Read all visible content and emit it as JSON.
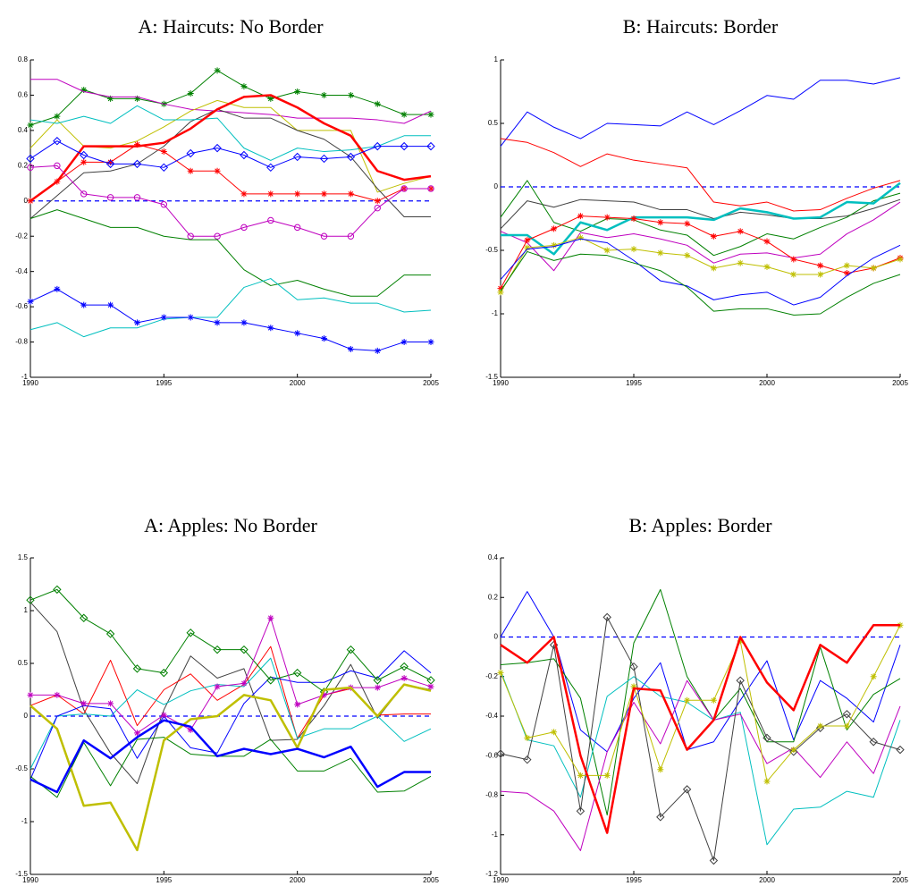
{
  "chart_data": [
    {
      "type": "line",
      "title": "A: Haircuts: No Border",
      "x": [
        1990,
        1991,
        1992,
        1993,
        1994,
        1995,
        1996,
        1997,
        1998,
        1999,
        2000,
        2001,
        2002,
        2003,
        2004,
        2005
      ],
      "xlim": [
        1990,
        2005
      ],
      "xticks": [
        1990,
        1995,
        2000,
        2005
      ],
      "ylim": [
        -1,
        0.8
      ],
      "yticks": [
        -1,
        -0.8,
        -0.6,
        -0.4,
        -0.2,
        0,
        0.2,
        0.4,
        0.6,
        0.8
      ],
      "hlines": [
        {
          "value": 0,
          "color": "#0000ff",
          "style": "dashed"
        }
      ],
      "series": [
        {
          "color": "#008000",
          "marker": "star",
          "line_width": 1,
          "values": [
            0.43,
            0.48,
            0.63,
            0.58,
            0.58,
            0.55,
            0.61,
            0.74,
            0.65,
            0.58,
            0.62,
            0.6,
            0.6,
            0.55,
            0.49,
            0.49
          ]
        },
        {
          "color": "#bf00bf",
          "marker": "none",
          "line_width": 1,
          "values": [
            0.69,
            0.69,
            0.62,
            0.59,
            0.59,
            0.55,
            0.52,
            0.51,
            0.5,
            0.49,
            0.47,
            0.47,
            0.47,
            0.46,
            0.44,
            0.51
          ]
        },
        {
          "color": "#bfbf00",
          "marker": "none",
          "line_width": 1,
          "values": [
            0.3,
            0.46,
            0.31,
            0.3,
            0.34,
            0.42,
            0.51,
            0.57,
            0.53,
            0.53,
            0.4,
            0.4,
            0.4,
            0.05,
            0.1,
            0.14
          ]
        },
        {
          "color": "#404040",
          "marker": "none",
          "line_width": 1,
          "values": [
            -0.1,
            0.03,
            0.16,
            0.17,
            0.21,
            0.31,
            0.45,
            0.52,
            0.47,
            0.47,
            0.4,
            0.35,
            0.25,
            0.07,
            -0.09,
            -0.09
          ]
        },
        {
          "color": "#00bfbf",
          "marker": "none",
          "line_width": 1,
          "values": [
            0.46,
            0.44,
            0.48,
            0.44,
            0.54,
            0.46,
            0.46,
            0.47,
            0.3,
            0.23,
            0.3,
            0.28,
            0.29,
            0.31,
            0.37,
            0.37
          ]
        },
        {
          "color": "#ff0000",
          "marker": "none",
          "line_width": 2.5,
          "values": [
            0.0,
            0.11,
            0.31,
            0.31,
            0.31,
            0.33,
            0.41,
            0.52,
            0.59,
            0.6,
            0.53,
            0.44,
            0.37,
            0.17,
            0.12,
            0.14
          ]
        },
        {
          "color": "#ff0000",
          "marker": "star",
          "line_width": 1,
          "values": [
            0.0,
            0.11,
            0.22,
            0.22,
            0.32,
            0.28,
            0.17,
            0.17,
            0.04,
            0.04,
            0.04,
            0.04,
            0.04,
            0.0,
            0.07,
            0.07
          ]
        },
        {
          "color": "#0000ff",
          "marker": "diamond",
          "line_width": 1,
          "values": [
            0.24,
            0.34,
            0.26,
            0.21,
            0.21,
            0.19,
            0.27,
            0.3,
            0.26,
            0.19,
            0.25,
            0.24,
            0.25,
            0.31,
            0.31,
            0.31
          ]
        },
        {
          "color": "#bf00bf",
          "marker": "circle",
          "line_width": 1,
          "values": [
            0.19,
            0.2,
            0.04,
            0.02,
            0.02,
            -0.02,
            -0.2,
            -0.2,
            -0.15,
            -0.11,
            -0.15,
            -0.2,
            -0.2,
            -0.04,
            0.07,
            0.07
          ]
        },
        {
          "color": "#008000",
          "marker": "none",
          "line_width": 1,
          "values": [
            -0.1,
            -0.05,
            -0.1,
            -0.15,
            -0.15,
            -0.2,
            -0.22,
            -0.22,
            -0.39,
            -0.48,
            -0.45,
            -0.5,
            -0.54,
            -0.54,
            -0.42,
            -0.42
          ]
        },
        {
          "color": "#00bfbf",
          "marker": "none",
          "line_width": 1,
          "values": [
            -0.73,
            -0.69,
            -0.77,
            -0.72,
            -0.72,
            -0.67,
            -0.66,
            -0.66,
            -0.49,
            -0.44,
            -0.56,
            -0.55,
            -0.58,
            -0.58,
            -0.63,
            -0.62
          ]
        },
        {
          "color": "#0000ff",
          "marker": "star",
          "line_width": 1,
          "values": [
            -0.57,
            -0.5,
            -0.59,
            -0.59,
            -0.69,
            -0.66,
            -0.66,
            -0.69,
            -0.69,
            -0.72,
            -0.75,
            -0.78,
            -0.84,
            -0.85,
            -0.8,
            -0.8
          ]
        }
      ]
    },
    {
      "type": "line",
      "title": "B: Haircuts: Border",
      "x": [
        1990,
        1991,
        1992,
        1993,
        1994,
        1995,
        1996,
        1997,
        1998,
        1999,
        2000,
        2001,
        2002,
        2003,
        2004,
        2005
      ],
      "xlim": [
        1990,
        2005
      ],
      "xticks": [
        1990,
        1995,
        2000,
        2005
      ],
      "ylim": [
        -1.5,
        1
      ],
      "yticks": [
        -1.5,
        -1,
        -0.5,
        0,
        0.5,
        1
      ],
      "hlines": [
        {
          "value": 0,
          "color": "#0000ff",
          "style": "dashed"
        }
      ],
      "series": [
        {
          "color": "#0000ff",
          "marker": "none",
          "line_width": 1,
          "values": [
            0.32,
            0.59,
            0.47,
            0.38,
            0.5,
            0.49,
            0.48,
            0.59,
            0.49,
            0.6,
            0.72,
            0.69,
            0.84,
            0.84,
            0.81,
            0.86
          ]
        },
        {
          "color": "#ff0000",
          "marker": "none",
          "line_width": 1,
          "values": [
            0.38,
            0.35,
            0.27,
            0.16,
            0.26,
            0.21,
            0.18,
            0.15,
            -0.12,
            -0.15,
            -0.12,
            -0.19,
            -0.18,
            -0.09,
            -0.01,
            0.05
          ]
        },
        {
          "color": "#404040",
          "marker": "none",
          "line_width": 1,
          "values": [
            -0.33,
            -0.11,
            -0.16,
            -0.1,
            -0.11,
            -0.12,
            -0.18,
            -0.18,
            -0.25,
            -0.2,
            -0.22,
            -0.25,
            -0.25,
            -0.23,
            -0.17,
            -0.1
          ]
        },
        {
          "color": "#008000",
          "marker": "none",
          "line_width": 1,
          "values": [
            -0.24,
            0.05,
            -0.28,
            -0.35,
            -0.25,
            -0.26,
            -0.34,
            -0.38,
            -0.54,
            -0.47,
            -0.37,
            -0.41,
            -0.32,
            -0.24,
            -0.11,
            -0.05
          ]
        },
        {
          "color": "#bf00bf",
          "marker": "none",
          "line_width": 1,
          "values": [
            -0.35,
            -0.44,
            -0.66,
            -0.36,
            -0.4,
            -0.37,
            -0.41,
            -0.46,
            -0.6,
            -0.53,
            -0.52,
            -0.56,
            -0.53,
            -0.37,
            -0.26,
            -0.12
          ]
        },
        {
          "color": "#00bfbf",
          "marker": "none",
          "line_width": 2.5,
          "values": [
            -0.38,
            -0.38,
            -0.53,
            -0.28,
            -0.34,
            -0.24,
            -0.24,
            -0.24,
            -0.26,
            -0.17,
            -0.2,
            -0.25,
            -0.24,
            -0.12,
            -0.13,
            0.03
          ]
        },
        {
          "color": "#ff0000",
          "marker": "star",
          "line_width": 1,
          "values": [
            -0.8,
            -0.42,
            -0.33,
            -0.23,
            -0.24,
            -0.25,
            -0.28,
            -0.29,
            -0.39,
            -0.35,
            -0.43,
            -0.57,
            -0.62,
            -0.68,
            -0.64,
            -0.56
          ]
        },
        {
          "color": "#bfbf00",
          "marker": "star",
          "line_width": 1,
          "values": [
            -0.83,
            -0.48,
            -0.46,
            -0.4,
            -0.5,
            -0.49,
            -0.52,
            -0.54,
            -0.64,
            -0.6,
            -0.63,
            -0.69,
            -0.69,
            -0.62,
            -0.64,
            -0.57
          ]
        },
        {
          "color": "#0000ff",
          "marker": "none",
          "line_width": 1,
          "values": [
            -0.73,
            -0.49,
            -0.47,
            -0.41,
            -0.44,
            -0.58,
            -0.74,
            -0.78,
            -0.89,
            -0.85,
            -0.83,
            -0.93,
            -0.87,
            -0.7,
            -0.56,
            -0.46
          ]
        },
        {
          "color": "#008000",
          "marker": "none",
          "line_width": 1,
          "values": [
            -0.82,
            -0.51,
            -0.58,
            -0.53,
            -0.54,
            -0.6,
            -0.66,
            -0.79,
            -0.98,
            -0.96,
            -0.96,
            -1.01,
            -1.0,
            -0.87,
            -0.76,
            -0.69
          ]
        }
      ]
    },
    {
      "type": "line",
      "title": "A: Apples: No Border",
      "x": [
        1990,
        1991,
        1992,
        1993,
        1994,
        1995,
        1996,
        1997,
        1998,
        1999,
        2000,
        2001,
        2002,
        2003,
        2004,
        2005
      ],
      "xlim": [
        1990,
        2005
      ],
      "xticks": [
        1990,
        1995,
        2000,
        2005
      ],
      "ylim": [
        -1.5,
        1.5
      ],
      "yticks": [
        -1.5,
        -1,
        -0.5,
        0,
        0.5,
        1,
        1.5
      ],
      "hlines": [
        {
          "value": 0,
          "color": "#0000ff",
          "style": "dashed"
        }
      ],
      "series": [
        {
          "color": "#404040",
          "marker": "none",
          "line_width": 1,
          "values": [
            1.08,
            0.8,
            0.06,
            -0.35,
            -0.64,
            0.06,
            0.57,
            0.36,
            0.45,
            -0.23,
            -0.22,
            0.1,
            0.49,
            -0.02,
            0.3,
            0.25
          ]
        },
        {
          "color": "#ff0000",
          "marker": "none",
          "line_width": 1,
          "values": [
            0.1,
            0.2,
            0.02,
            0.53,
            -0.09,
            0.25,
            0.4,
            0.15,
            0.3,
            0.66,
            -0.21,
            0.2,
            0.26,
            0.01,
            0.02,
            0.02
          ]
        },
        {
          "color": "#00bfbf",
          "marker": "none",
          "line_width": 1,
          "values": [
            -0.5,
            0.0,
            0.02,
            0.0,
            0.25,
            0.11,
            0.24,
            0.3,
            0.28,
            0.55,
            -0.21,
            -0.12,
            -0.12,
            0.0,
            -0.24,
            -0.12
          ]
        },
        {
          "color": "#0000ff",
          "marker": "none",
          "line_width": 1,
          "values": [
            -0.6,
            0.0,
            0.1,
            0.07,
            -0.4,
            0.0,
            -0.3,
            -0.35,
            0.12,
            0.37,
            0.32,
            0.32,
            0.43,
            0.36,
            0.62,
            0.41
          ]
        },
        {
          "color": "#008000",
          "marker": "none",
          "line_width": 1,
          "values": [
            -0.57,
            -0.77,
            -0.25,
            -0.66,
            -0.22,
            -0.2,
            -0.36,
            -0.38,
            -0.38,
            -0.22,
            -0.52,
            -0.52,
            -0.4,
            -0.72,
            -0.71,
            -0.57
          ]
        },
        {
          "color": "#008000",
          "marker": "diamond",
          "line_width": 1,
          "values": [
            1.1,
            1.2,
            0.93,
            0.78,
            0.45,
            0.41,
            0.79,
            0.63,
            0.63,
            0.34,
            0.41,
            0.23,
            0.63,
            0.34,
            0.47,
            0.34
          ]
        },
        {
          "color": "#bf00bf",
          "marker": "star",
          "line_width": 1,
          "values": [
            0.2,
            0.2,
            0.12,
            0.12,
            -0.16,
            0.01,
            -0.13,
            0.28,
            0.31,
            0.93,
            0.11,
            0.2,
            0.27,
            0.27,
            0.36,
            0.28
          ]
        },
        {
          "color": "#bfbf00",
          "marker": "none",
          "line_width": 2.5,
          "values": [
            0.1,
            -0.12,
            -0.85,
            -0.82,
            -1.27,
            -0.23,
            -0.03,
            0.0,
            0.2,
            0.15,
            -0.3,
            0.25,
            0.27,
            0.0,
            0.3,
            0.24
          ]
        },
        {
          "color": "#0000ff",
          "marker": "none",
          "line_width": 2.5,
          "values": [
            -0.6,
            -0.72,
            -0.23,
            -0.4,
            -0.2,
            -0.04,
            -0.1,
            -0.38,
            -0.31,
            -0.36,
            -0.31,
            -0.39,
            -0.29,
            -0.67,
            -0.53,
            -0.53
          ]
        }
      ]
    },
    {
      "type": "line",
      "title": "B: Apples: Border",
      "x": [
        1990,
        1991,
        1992,
        1993,
        1994,
        1995,
        1996,
        1997,
        1998,
        1999,
        2000,
        2001,
        2002,
        2003,
        2004,
        2005
      ],
      "xlim": [
        1990,
        2005
      ],
      "xticks": [
        1990,
        1995,
        2000,
        2005
      ],
      "ylim": [
        -1.2,
        0.4
      ],
      "yticks": [
        -1.2,
        -1,
        -0.8,
        -0.6,
        -0.4,
        -0.2,
        0,
        0.2,
        0.4
      ],
      "hlines": [
        {
          "value": 0,
          "color": "#0000ff",
          "style": "dashed"
        }
      ],
      "series": [
        {
          "color": "#0000ff",
          "marker": "none",
          "line_width": 1,
          "values": [
            0.0,
            0.23,
            0.0,
            -0.47,
            -0.58,
            -0.31,
            -0.13,
            -0.57,
            -0.53,
            -0.32,
            -0.12,
            -0.52,
            -0.22,
            -0.31,
            -0.43,
            -0.04
          ]
        },
        {
          "color": "#008000",
          "marker": "none",
          "line_width": 1,
          "values": [
            -0.14,
            -0.13,
            -0.11,
            -0.31,
            -0.9,
            -0.03,
            0.24,
            -0.2,
            -0.42,
            -0.26,
            -0.53,
            -0.53,
            -0.05,
            -0.47,
            -0.29,
            -0.21
          ]
        },
        {
          "color": "#00bfbf",
          "marker": "none",
          "line_width": 1,
          "values": [
            -0.17,
            -0.52,
            -0.55,
            -0.81,
            -0.3,
            -0.2,
            -0.3,
            -0.33,
            -0.42,
            -0.38,
            -1.05,
            -0.87,
            -0.86,
            -0.78,
            -0.81,
            -0.42
          ]
        },
        {
          "color": "#bf00bf",
          "marker": "none",
          "line_width": 1,
          "values": [
            -0.78,
            -0.79,
            -0.88,
            -1.08,
            -0.58,
            -0.33,
            -0.54,
            -0.22,
            -0.42,
            -0.39,
            -0.64,
            -0.56,
            -0.71,
            -0.53,
            -0.69,
            -0.35
          ]
        },
        {
          "color": "#404040",
          "marker": "diamond",
          "line_width": 1,
          "values": [
            -0.59,
            -0.62,
            -0.04,
            -0.88,
            0.1,
            -0.15,
            -0.91,
            -0.77,
            -1.13,
            -0.22,
            -0.51,
            -0.58,
            -0.46,
            -0.39,
            -0.53,
            -0.57
          ]
        },
        {
          "color": "#bfbf00",
          "marker": "star",
          "line_width": 1,
          "values": [
            -0.18,
            -0.51,
            -0.48,
            -0.7,
            -0.7,
            -0.25,
            -0.67,
            -0.32,
            -0.32,
            -0.02,
            -0.73,
            -0.57,
            -0.45,
            -0.45,
            -0.2,
            0.06
          ]
        },
        {
          "color": "#ff0000",
          "marker": "none",
          "line_width": 2.5,
          "values": [
            -0.04,
            -0.13,
            0.0,
            -0.6,
            -0.99,
            -0.26,
            -0.27,
            -0.57,
            -0.42,
            0.0,
            -0.23,
            -0.37,
            -0.04,
            -0.13,
            0.06,
            0.06
          ]
        }
      ]
    }
  ]
}
